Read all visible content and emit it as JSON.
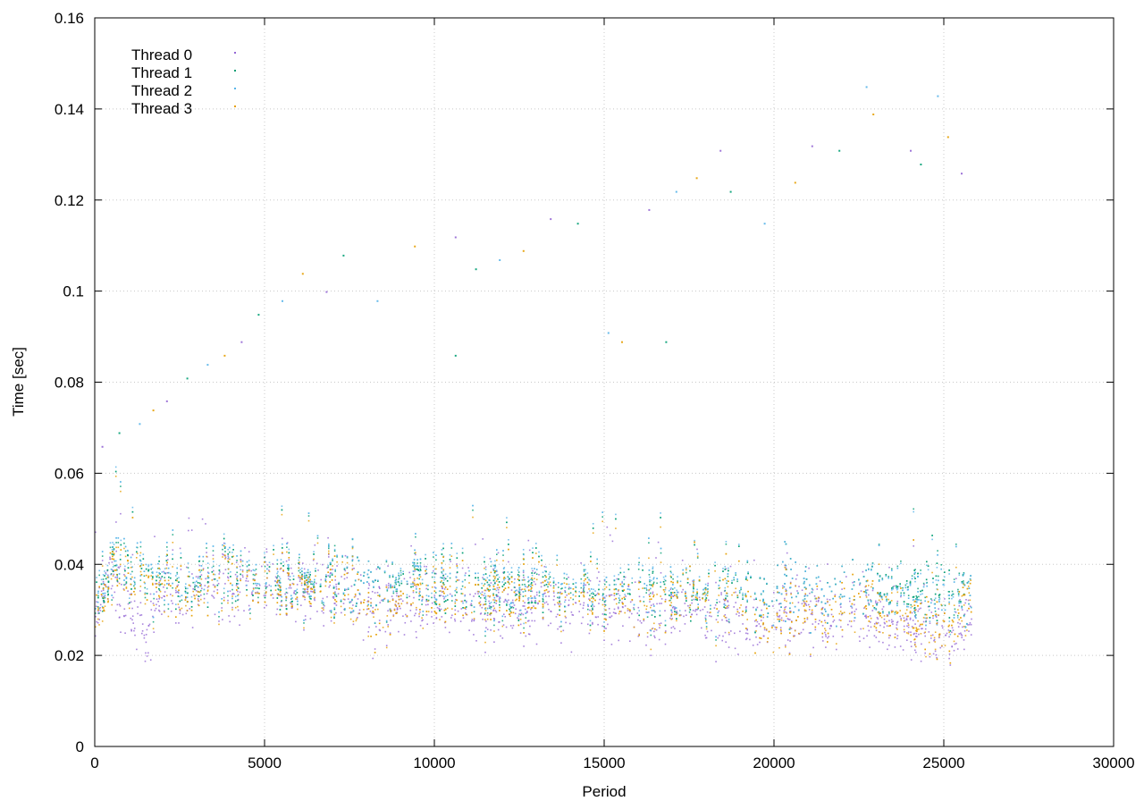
{
  "chart_data": {
    "type": "scatter",
    "title": "",
    "xlabel": "Period",
    "ylabel": "Time [sec]",
    "xlim": [
      0,
      30000
    ],
    "ylim": [
      0,
      0.16
    ],
    "x_ticks": [
      0,
      5000,
      10000,
      15000,
      20000,
      25000,
      30000
    ],
    "y_ticks": [
      0,
      0.02,
      0.04,
      0.06,
      0.08,
      0.1,
      0.12,
      0.14,
      0.16
    ],
    "x_tick_labels": [
      "0",
      "5000",
      "10000",
      "15000",
      "20000",
      "25000",
      "30000"
    ],
    "y_tick_labels": [
      "0",
      "0.02",
      "0.04",
      "0.06",
      "0.08",
      "0.1",
      "0.12",
      "0.14",
      "0.16"
    ],
    "grid": true,
    "legend_position": "top-left",
    "x_max_data": 25800,
    "series": [
      {
        "name": "Thread 0",
        "color": "#9466d4",
        "trend": [
          [
            0,
            0.028
          ],
          [
            300,
            0.038
          ],
          [
            1000,
            0.031
          ],
          [
            1500,
            0.024
          ],
          [
            1800,
            0.033
          ],
          [
            3000,
            0.035
          ],
          [
            5000,
            0.036
          ],
          [
            7500,
            0.034
          ],
          [
            8000,
            0.03
          ],
          [
            10000,
            0.032
          ],
          [
            12500,
            0.031
          ],
          [
            15000,
            0.031
          ],
          [
            16500,
            0.03
          ],
          [
            17500,
            0.032
          ],
          [
            19000,
            0.028
          ],
          [
            20500,
            0.029
          ],
          [
            22500,
            0.03
          ],
          [
            23500,
            0.027
          ],
          [
            25000,
            0.025
          ],
          [
            25700,
            0.028
          ]
        ]
      },
      {
        "name": "Thread 1",
        "color": "#009e73",
        "trend": [
          [
            0,
            0.033
          ],
          [
            500,
            0.04
          ],
          [
            3000,
            0.036
          ],
          [
            5000,
            0.037
          ],
          [
            8000,
            0.036
          ],
          [
            10000,
            0.035
          ],
          [
            13000,
            0.035
          ],
          [
            15000,
            0.034
          ],
          [
            17500,
            0.035
          ],
          [
            20000,
            0.034
          ],
          [
            22500,
            0.035
          ],
          [
            25000,
            0.034
          ],
          [
            25700,
            0.034
          ]
        ]
      },
      {
        "name": "Thread 2",
        "color": "#56b4e9",
        "trend": [
          [
            0,
            0.034
          ],
          [
            500,
            0.041
          ],
          [
            3000,
            0.037
          ],
          [
            5000,
            0.038
          ],
          [
            8000,
            0.036
          ],
          [
            10000,
            0.036
          ],
          [
            13000,
            0.036
          ],
          [
            15000,
            0.035
          ],
          [
            17500,
            0.036
          ],
          [
            20000,
            0.034
          ],
          [
            22500,
            0.035
          ],
          [
            25000,
            0.033
          ],
          [
            25700,
            0.034
          ]
        ]
      },
      {
        "name": "Thread 3",
        "color": "#e69f00",
        "trend": [
          [
            0,
            0.03
          ],
          [
            500,
            0.039
          ],
          [
            3000,
            0.034
          ],
          [
            5000,
            0.036
          ],
          [
            7500,
            0.035
          ],
          [
            8000,
            0.029
          ],
          [
            10000,
            0.033
          ],
          [
            12500,
            0.034
          ],
          [
            15000,
            0.033
          ],
          [
            16000,
            0.03
          ],
          [
            17500,
            0.036
          ],
          [
            19000,
            0.031
          ],
          [
            20000,
            0.028
          ],
          [
            22500,
            0.032
          ],
          [
            25000,
            0.025
          ],
          [
            25700,
            0.033
          ]
        ]
      }
    ],
    "outliers": [
      [
        200,
        0.066
      ],
      [
        700,
        0.069
      ],
      [
        1300,
        0.071
      ],
      [
        1700,
        0.074
      ],
      [
        2100,
        0.076
      ],
      [
        2700,
        0.081
      ],
      [
        3300,
        0.084
      ],
      [
        3800,
        0.086
      ],
      [
        4300,
        0.089
      ],
      [
        4800,
        0.095
      ],
      [
        5500,
        0.098
      ],
      [
        6100,
        0.104
      ],
      [
        6800,
        0.1
      ],
      [
        7300,
        0.108
      ],
      [
        8300,
        0.098
      ],
      [
        9400,
        0.11
      ],
      [
        10600,
        0.112
      ],
      [
        11200,
        0.105
      ],
      [
        11900,
        0.107
      ],
      [
        12600,
        0.109
      ],
      [
        13400,
        0.116
      ],
      [
        14200,
        0.115
      ],
      [
        15100,
        0.091
      ],
      [
        15500,
        0.089
      ],
      [
        16300,
        0.118
      ],
      [
        16800,
        0.089
      ],
      [
        17100,
        0.122
      ],
      [
        17700,
        0.125
      ],
      [
        18400,
        0.131
      ],
      [
        18700,
        0.122
      ],
      [
        19700,
        0.115
      ],
      [
        20600,
        0.124
      ],
      [
        21100,
        0.132
      ],
      [
        21900,
        0.131
      ],
      [
        22700,
        0.145
      ],
      [
        22900,
        0.139
      ],
      [
        24000,
        0.131
      ],
      [
        24300,
        0.128
      ],
      [
        24800,
        0.143
      ],
      [
        25100,
        0.134
      ],
      [
        25500,
        0.126
      ],
      [
        10600,
        0.086
      ]
    ]
  }
}
